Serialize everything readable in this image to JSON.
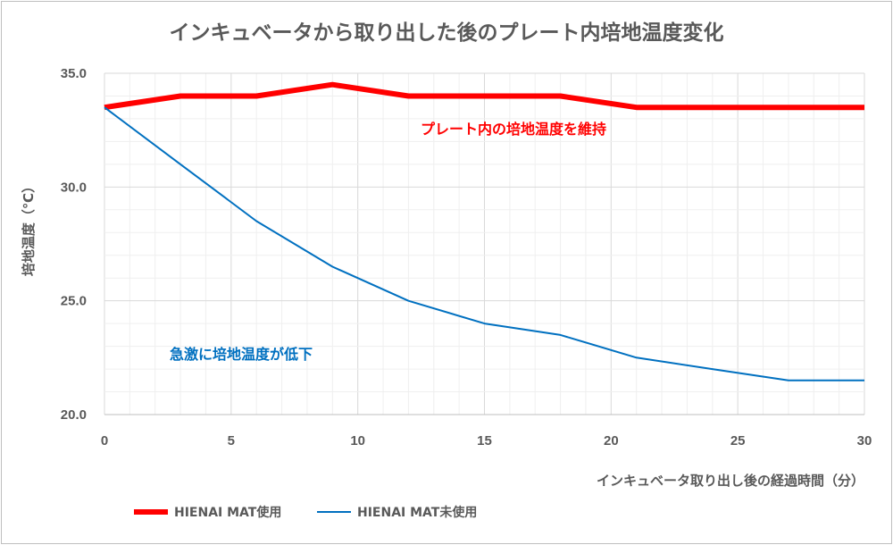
{
  "chart_data": {
    "type": "line",
    "title": "インキュベータから取り出した後のプレート内培地温度変化",
    "xlabel": "インキュベータ取り出し後の経過時間（分）",
    "ylabel": "培地温度（℃）",
    "xlim": [
      0,
      30
    ],
    "ylim": [
      20,
      35
    ],
    "x_ticks": [
      "0",
      "5",
      "10",
      "15",
      "20",
      "25",
      "30"
    ],
    "y_ticks": [
      "20.0",
      "25.0",
      "30.0",
      "35.0"
    ],
    "grid": true,
    "legend_position": "bottom-left",
    "series": [
      {
        "name": "HIENAI MAT使用",
        "color": "#ff0000",
        "x": [
          0,
          3,
          6,
          9,
          12,
          15,
          18,
          21,
          24,
          27,
          30
        ],
        "values": [
          33.5,
          34.0,
          34.0,
          34.5,
          34.0,
          34.0,
          34.0,
          33.5,
          33.5,
          33.5,
          33.5
        ]
      },
      {
        "name": "HIENAI MAT未使用",
        "color": "#0070c0",
        "x": [
          0,
          3,
          6,
          9,
          12,
          15,
          18,
          21,
          24,
          27,
          30
        ],
        "values": [
          33.5,
          31.0,
          28.5,
          26.5,
          25.0,
          24.0,
          23.5,
          22.5,
          22.0,
          21.5,
          21.5
        ]
      }
    ],
    "annotations": [
      {
        "text": "プレート内の培地温度を維持",
        "color": "#ff0000"
      },
      {
        "text": "急激に培地温度が低下",
        "color": "#0070c0"
      }
    ]
  }
}
